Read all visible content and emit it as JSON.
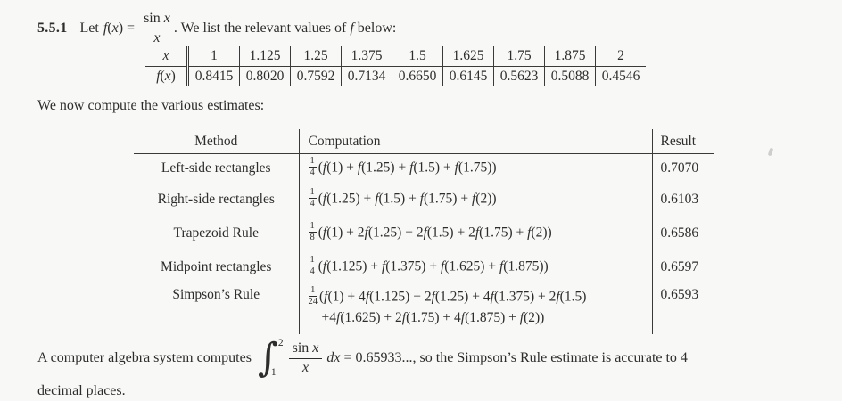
{
  "problem": {
    "number": "5.5.1",
    "lead_word": "Let",
    "fx_equals": "f(x) =",
    "frac_num": "sin x",
    "frac_den": "x",
    "intro_after": ". We list the relevant values of f below:"
  },
  "values_table": {
    "row1_label": "x",
    "row2_label": "f(x)",
    "x_values": [
      "1",
      "1.125",
      "1.25",
      "1.375",
      "1.5",
      "1.625",
      "1.75",
      "1.875",
      "2"
    ],
    "fx_values": [
      "0.8415",
      "0.8020",
      "0.7592",
      "0.7134",
      "0.6650",
      "0.6145",
      "0.5623",
      "0.5088",
      "0.4546"
    ]
  },
  "estimates_intro": "We now compute the various estimates:",
  "methods_table": {
    "headers": {
      "method": "Method",
      "computation": "Computation",
      "result": "Result"
    },
    "rows": [
      {
        "method": "Left-side rectangles",
        "frac_num": "1",
        "frac_den": "4",
        "expr": "(f(1) + f(1.25) + f(1.5) + f(1.75))",
        "expr2": "",
        "result": "0.7070"
      },
      {
        "method": "Right-side rectangles",
        "frac_num": "1",
        "frac_den": "4",
        "expr": "(f(1.25) + f(1.5) + f(1.75) + f(2))",
        "expr2": "",
        "result": "0.6103"
      },
      {
        "method": "Trapezoid Rule",
        "frac_num": "1",
        "frac_den": "8",
        "expr": "(f(1) + 2f(1.25) + 2f(1.5) + 2f(1.75) + f(2))",
        "expr2": "",
        "result": "0.6586"
      },
      {
        "method": "Midpoint rectangles",
        "frac_num": "1",
        "frac_den": "4",
        "expr": "(f(1.125) + f(1.375) + f(1.625) + f(1.875))",
        "expr2": "",
        "result": "0.6597"
      },
      {
        "method": "Simpson’s Rule",
        "frac_num": "1",
        "frac_den": "24",
        "expr": "(f(1) + 4f(1.125) + 2f(1.25) + 4f(1.375) + 2f(1.5)",
        "expr2": "+4f(1.625) + 2f(1.75) + 4f(1.875) + f(2))",
        "result": "0.6593"
      }
    ]
  },
  "conclusion": {
    "before_integral": "A computer algebra system computes",
    "integral_upper": "2",
    "integral_lower": "1",
    "frac_num": "sin x",
    "frac_den": "x",
    "after_integral": "dx = 0.65933..., so the Simpson’s Rule estimate is accurate to 4",
    "line2": "decimal places."
  }
}
